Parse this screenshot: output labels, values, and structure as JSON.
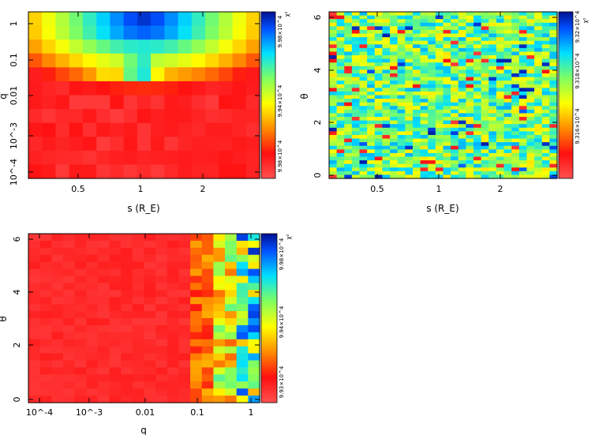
{
  "chart_data": [
    {
      "type": "heatmap",
      "id": "s-q",
      "xlabel": "s (R_E)",
      "ylabel": "q",
      "xticks": [
        "0.5",
        "1",
        "2"
      ],
      "yticks": [
        "10^-4",
        "10^-3",
        "0.01",
        "0.1",
        "1"
      ],
      "colorbar_label": "χ²",
      "colorbar_ticks": [
        "9.98×10^4",
        "9.94×10^4",
        "9.98×10^4"
      ],
      "grid": {
        "cols": 17,
        "rows": 12
      },
      "features": "mostly red (high chi²) background; low chi² (blue) minima near s≈1 at q≈1 and q≈0.1; yellow/green transition region around s 0.6–1.4, q 0.05–1"
    },
    {
      "type": "heatmap",
      "id": "s-theta",
      "xlabel": "s (R_E)",
      "ylabel": "θ",
      "xticks": [
        "0.5",
        "1",
        "2"
      ],
      "yticks": [
        "0",
        "2",
        "4",
        "6"
      ],
      "colorbar_label": "χ²",
      "colorbar_ticks": [
        "9.316×10^4",
        "9.318×10^4",
        "9.32×10^4"
      ],
      "grid": {
        "cols": 30,
        "rows": 46
      },
      "features": "noisy mixture of cyan/green/yellow with scattered red and blue cells, no strong structure"
    },
    {
      "type": "heatmap",
      "id": "q-theta",
      "xlabel": "q",
      "ylabel": "θ",
      "xticks": [
        "10^-4",
        "10^-3",
        "0.01",
        "0.1",
        "1"
      ],
      "yticks": [
        "0",
        "2",
        "4",
        "6"
      ],
      "colorbar_label": "χ²",
      "colorbar_ticks": [
        "9.93×10^4",
        "9.94×10^4",
        "9.98×10^4"
      ],
      "grid": {
        "cols": 20,
        "rows": 24
      },
      "features": "uniform red for q < 0.1; variable yellow/cyan/blue structure for q ≥ 0.1"
    }
  ]
}
